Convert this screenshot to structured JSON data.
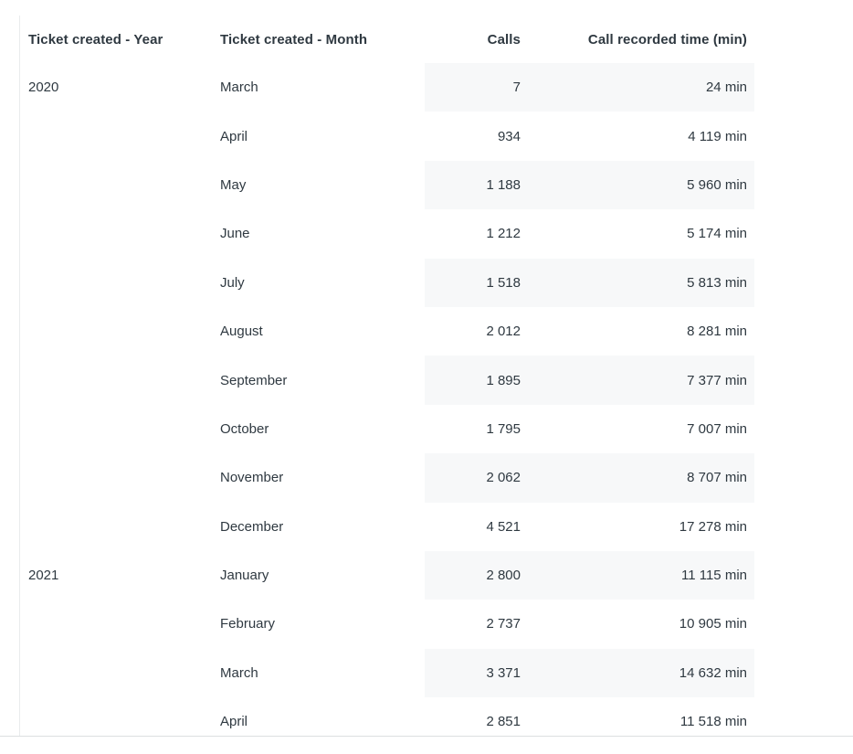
{
  "colors": {
    "text": "#2f3941",
    "row_stripe": "#f7f8f9",
    "left_border": "#e9ebed",
    "bottom_border": "#dcdfe1",
    "background": "#ffffff"
  },
  "table": {
    "columns": [
      {
        "label": "Ticket created - Year",
        "align": "left"
      },
      {
        "label": "Ticket created - Month",
        "align": "left"
      },
      {
        "label": "Calls",
        "align": "right"
      },
      {
        "label": "Call recorded time (min)",
        "align": "right"
      }
    ],
    "rows": [
      {
        "year": "2020",
        "month": "March",
        "calls": "7",
        "time": "24 min"
      },
      {
        "year": "",
        "month": "April",
        "calls": "934",
        "time": "4 119 min"
      },
      {
        "year": "",
        "month": "May",
        "calls": "1 188",
        "time": "5 960 min"
      },
      {
        "year": "",
        "month": "June",
        "calls": "1 212",
        "time": "5 174 min"
      },
      {
        "year": "",
        "month": "July",
        "calls": "1 518",
        "time": "5 813 min"
      },
      {
        "year": "",
        "month": "August",
        "calls": "2 012",
        "time": "8 281 min"
      },
      {
        "year": "",
        "month": "September",
        "calls": "1 895",
        "time": "7 377 min"
      },
      {
        "year": "",
        "month": "October",
        "calls": "1 795",
        "time": "7 007 min"
      },
      {
        "year": "",
        "month": "November",
        "calls": "2 062",
        "time": "8 707 min"
      },
      {
        "year": "",
        "month": "December",
        "calls": "4 521",
        "time": "17 278 min"
      },
      {
        "year": "2021",
        "month": "January",
        "calls": "2 800",
        "time": "11 115 min"
      },
      {
        "year": "",
        "month": "February",
        "calls": "2 737",
        "time": "10 905 min"
      },
      {
        "year": "",
        "month": "March",
        "calls": "3 371",
        "time": "14 632 min"
      },
      {
        "year": "",
        "month": "April",
        "calls": "2 851",
        "time": "11 518 min"
      }
    ]
  },
  "chart_data": {
    "type": "table",
    "title": "",
    "columns": [
      "Ticket created - Year",
      "Ticket created - Month",
      "Calls",
      "Call recorded time (min)"
    ],
    "rows": [
      [
        "2020",
        "March",
        7,
        24
      ],
      [
        "",
        "April",
        934,
        4119
      ],
      [
        "",
        "May",
        1188,
        5960
      ],
      [
        "",
        "June",
        1212,
        5174
      ],
      [
        "",
        "July",
        1518,
        5813
      ],
      [
        "",
        "August",
        2012,
        8281
      ],
      [
        "",
        "September",
        1895,
        7377
      ],
      [
        "",
        "October",
        1795,
        7007
      ],
      [
        "",
        "November",
        2062,
        8707
      ],
      [
        "",
        "December",
        4521,
        17278
      ],
      [
        "2021",
        "January",
        2800,
        11115
      ],
      [
        "",
        "February",
        2737,
        10905
      ],
      [
        "",
        "March",
        3371,
        14632
      ],
      [
        "",
        "April",
        2851,
        11518
      ]
    ],
    "notes": "Odd data rows have a light stripe behind the Calls and Call recorded time columns; numbers use space thousands separators; time unit is minutes"
  }
}
